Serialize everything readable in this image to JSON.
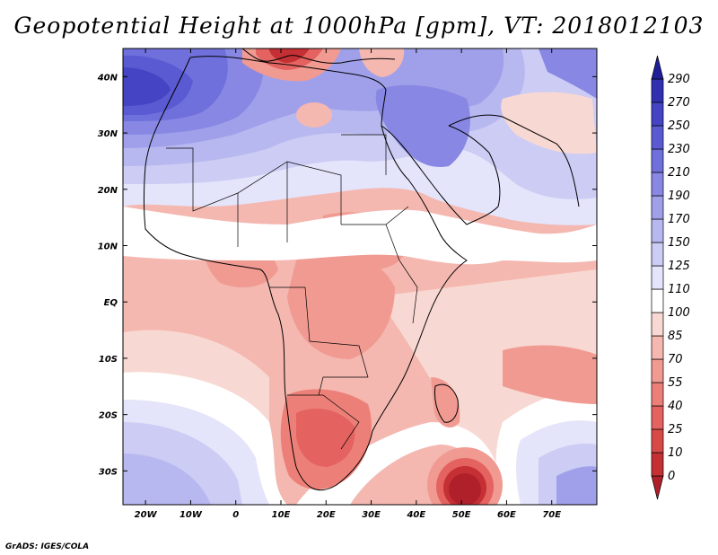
{
  "title": "Geopotential Height at 1000hPa [gpm], VT: 2018012103",
  "credit": "GrADS: IGES/COLA",
  "map": {
    "lon_range": [
      -25,
      80
    ],
    "lat_range": [
      -36,
      45
    ],
    "x_ticks": [
      "20W",
      "10W",
      "0",
      "10E",
      "20E",
      "30E",
      "40E",
      "50E",
      "60E",
      "70E"
    ],
    "y_ticks": [
      "40N",
      "30N",
      "20N",
      "10N",
      "EQ",
      "10S",
      "20S",
      "30S"
    ]
  },
  "colorbar": {
    "levels": [
      "0",
      "10",
      "25",
      "40",
      "55",
      "70",
      "85",
      "100",
      "110",
      "125",
      "150",
      "170",
      "190",
      "210",
      "230",
      "250",
      "270",
      "290"
    ],
    "colors": [
      "#b0202a",
      "#c43034",
      "#d84a48",
      "#e46260",
      "#ec8078",
      "#f09a92",
      "#f4b8b0",
      "#f8d8d2",
      "#ffffff",
      "#e4e4fa",
      "#ccccf4",
      "#b8b8f0",
      "#a0a0ea",
      "#8888e4",
      "#7070dc",
      "#5a5ad2",
      "#4444c4",
      "#3030b0",
      "#1e1e98"
    ]
  }
}
